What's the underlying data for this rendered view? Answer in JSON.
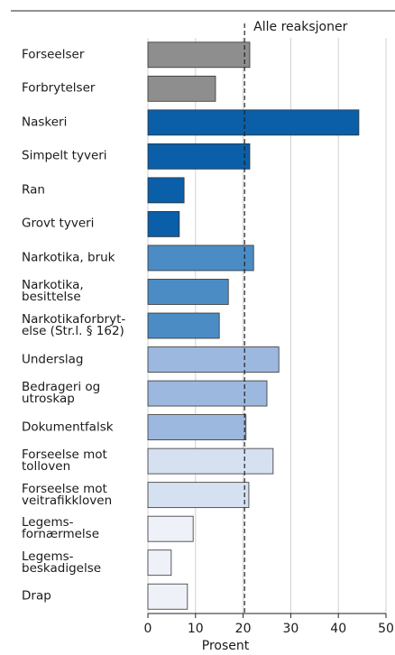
{
  "chart_data": {
    "type": "barh",
    "categories": [
      "Forseelser",
      "Forbrytelser",
      "Naskeri",
      "Simpelt tyveri",
      "Ran",
      "Grovt tyveri",
      "Narkotika, bruk",
      "Narkotika,\nbesittelse",
      "Narkotikaforbryt-\nelse (Str.l. § 162)",
      "Underslag",
      "Bedrageri og\nutroskap",
      "Dokumentfalsk",
      "Forseelse mot\ntolloven",
      "Forseelse mot\nveitrafikkloven",
      "Legems-\nfornærmelse",
      "Legems-\nbeskadigelse",
      "Drap"
    ],
    "values": [
      21.4,
      14.2,
      44.3,
      21.4,
      7.6,
      6.6,
      22.2,
      16.9,
      15,
      27.5,
      25,
      20.6,
      26.3,
      21.2,
      9.5,
      4.9,
      8.3
    ],
    "colors": [
      "#8e8e8e",
      "#8e8e8e",
      "#0b5ea8",
      "#0b5ea8",
      "#0b5ea8",
      "#0b5ea8",
      "#4b8cc5",
      "#4b8cc5",
      "#4b8cc5",
      "#9db8de",
      "#9db8de",
      "#9db8de",
      "#d5e0f1",
      "#d5e0f1",
      "#eff1f8",
      "#eff1f8",
      "#eff1f8"
    ],
    "xlim": [
      0,
      50
    ],
    "xticks": [
      0,
      10,
      20,
      30,
      40,
      50
    ],
    "grid": true,
    "xlabel": "Prosent",
    "reference_line": {
      "value": 20.3,
      "label": "Alle reaksjoner"
    }
  }
}
